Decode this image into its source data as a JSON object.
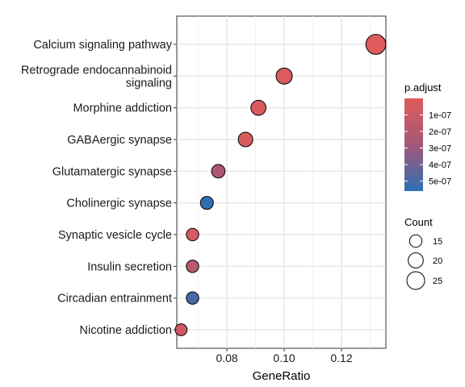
{
  "chart_data": {
    "type": "scatter",
    "xlabel": "GeneRatio",
    "ylabel": "",
    "xlim": [
      0.0625,
      0.1355
    ],
    "xticks": [
      "0.08",
      "0.10",
      "0.12"
    ],
    "xtick_values": [
      0.08,
      0.1,
      0.12
    ],
    "categories": [
      "Calcium signaling pathway",
      "Retrograde endocannabinoid signaling",
      "Morphine addiction",
      "GABAergic synapse",
      "Glutamatergic synapse",
      "Cholinergic synapse",
      "Synaptic vesicle cycle",
      "Insulin secretion",
      "Circadian entrainment",
      "Nicotine addiction"
    ],
    "category_lines": [
      [
        "Calcium signaling pathway"
      ],
      [
        "Retrograde endocannabinoid",
        "signaling"
      ],
      [
        "Morphine addiction"
      ],
      [
        "GABAergic synapse"
      ],
      [
        "Glutamatergic synapse"
      ],
      [
        "Cholinergic synapse"
      ],
      [
        "Synaptic vesicle cycle"
      ],
      [
        "Insulin secretion"
      ],
      [
        "Circadian entrainment"
      ],
      [
        "Nicotine addiction"
      ]
    ],
    "points": [
      {
        "category": "Calcium signaling pathway",
        "x": 0.132,
        "count": 29,
        "p_adjust": 2e-09
      },
      {
        "category": "Retrograde endocannabinoid signaling",
        "x": 0.1,
        "count": 22,
        "p_adjust": 2e-08
      },
      {
        "category": "Morphine addiction",
        "x": 0.091,
        "count": 20,
        "p_adjust": 3e-08
      },
      {
        "category": "GABAergic synapse",
        "x": 0.0865,
        "count": 19,
        "p_adjust": 4e-08
      },
      {
        "category": "Glutamatergic synapse",
        "x": 0.077,
        "count": 17,
        "p_adjust": 2.4e-07
      },
      {
        "category": "Cholinergic synapse",
        "x": 0.073,
        "count": 16,
        "p_adjust": 5.5e-07
      },
      {
        "category": "Synaptic vesicle cycle",
        "x": 0.068,
        "count": 15,
        "p_adjust": 6e-08
      },
      {
        "category": "Insulin secretion",
        "x": 0.068,
        "count": 15,
        "p_adjust": 1.8e-07
      },
      {
        "category": "Circadian entrainment",
        "x": 0.068,
        "count": 15,
        "p_adjust": 5e-07
      },
      {
        "category": "Nicotine addiction",
        "x": 0.064,
        "count": 14,
        "p_adjust": 8e-08
      }
    ],
    "color_legend": {
      "title": "p.adjust",
      "labels": [
        "1e-07",
        "2e-07",
        "3e-07",
        "4e-07",
        "5e-07"
      ],
      "values": [
        1e-07,
        2e-07,
        3e-07,
        4e-07,
        5e-07
      ],
      "range": [
        0,
        5.6e-07
      ],
      "low_color": "#e05b5b",
      "high_color": "#2e6fb4"
    },
    "size_legend": {
      "title": "Count",
      "labels": [
        "15",
        "20",
        "25"
      ],
      "values": [
        15,
        20,
        25
      ]
    },
    "grid": true,
    "legend_position": "right"
  }
}
